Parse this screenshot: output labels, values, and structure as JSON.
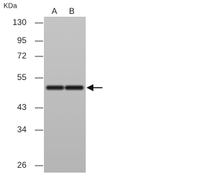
{
  "header": {
    "unit": "KDa"
  },
  "lanes": [
    "A",
    "B"
  ],
  "markers": [
    130,
    95,
    72,
    55,
    43,
    34,
    26
  ]
}
